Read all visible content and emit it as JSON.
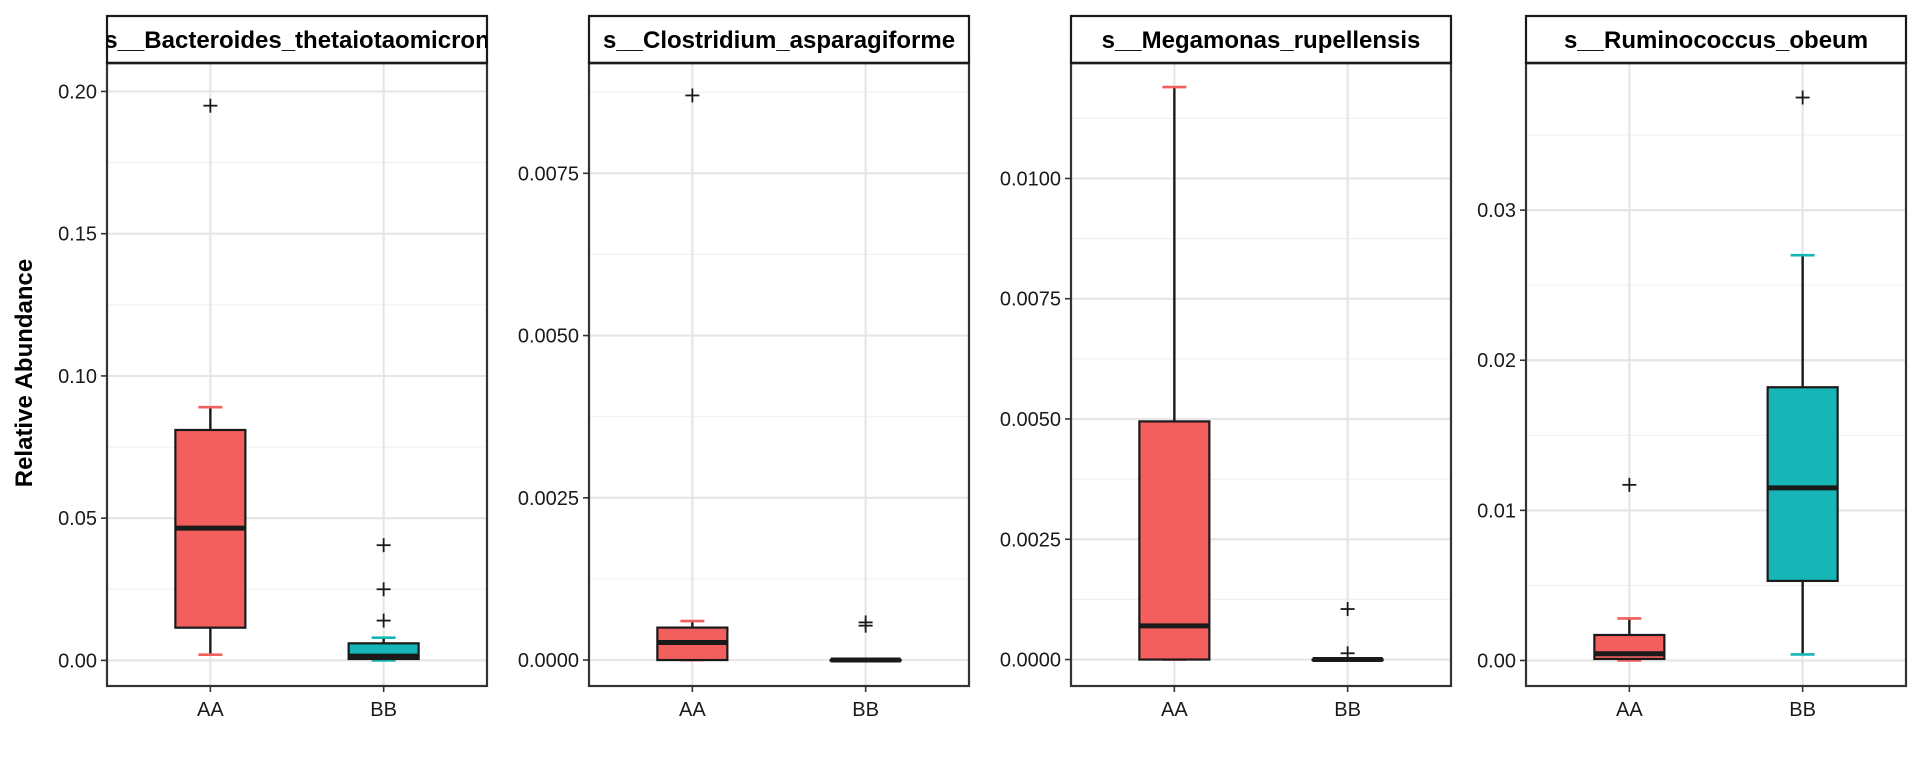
{
  "ylabel": "Relative Abundance",
  "groups": [
    "AA",
    "BB"
  ],
  "colors": {
    "AA": "#F25F5C",
    "BB": "#17B6B6"
  },
  "chart_data": [
    {
      "type": "box",
      "title": "s__Bacteroides_thetaiotaomicron",
      "xlabel": "",
      "ylabel": "Relative Abundance",
      "ylim": [
        -0.009,
        0.21
      ],
      "yticks": [
        0.0,
        0.05,
        0.1,
        0.15,
        0.2
      ],
      "ytick_labels": [
        "0.00",
        "0.05",
        "0.10",
        "0.15",
        "0.20"
      ],
      "boxes": [
        {
          "group": "AA",
          "whisker_low": 0.002,
          "q1": 0.0115,
          "median": 0.0465,
          "q3": 0.081,
          "whisker_high": 0.089,
          "outliers": [
            0.195
          ]
        },
        {
          "group": "BB",
          "whisker_low": 0.0,
          "q1": 0.0005,
          "median": 0.0015,
          "q3": 0.006,
          "whisker_high": 0.008,
          "outliers": [
            0.014,
            0.025,
            0.0405
          ]
        }
      ]
    },
    {
      "type": "box",
      "title": "s__Clostridium_asparagiforme",
      "xlabel": "",
      "ylabel": "",
      "ylim": [
        -0.0004,
        0.0092
      ],
      "yticks": [
        0.0,
        0.0025,
        0.005,
        0.0075
      ],
      "ytick_labels": [
        "0.0000",
        "0.0025",
        "0.0050",
        "0.0075"
      ],
      "boxes": [
        {
          "group": "AA",
          "whisker_low": 0.0,
          "q1": 0.0,
          "median": 0.00027,
          "q3": 0.0005,
          "whisker_high": 0.0006,
          "outliers": [
            0.0087
          ]
        },
        {
          "group": "BB",
          "whisker_low": 0.0,
          "q1": 0.0,
          "median": 0.0,
          "q3": 0.0,
          "whisker_high": 0.0,
          "outliers": [
            0.00053,
            0.00058
          ]
        }
      ]
    },
    {
      "type": "box",
      "title": "s__Megamonas_rupellensis",
      "xlabel": "",
      "ylabel": "",
      "ylim": [
        -0.00055,
        0.0124
      ],
      "yticks": [
        0.0,
        0.0025,
        0.005,
        0.0075,
        0.01
      ],
      "ytick_labels": [
        "0.0000",
        "0.0025",
        "0.0050",
        "0.0075",
        "0.0100"
      ],
      "boxes": [
        {
          "group": "AA",
          "whisker_low": 0.0,
          "q1": 0.0,
          "median": 0.0007,
          "q3": 0.00495,
          "whisker_high": 0.0119,
          "outliers": []
        },
        {
          "group": "BB",
          "whisker_low": 0.0,
          "q1": 0.0,
          "median": 0.0,
          "q3": 0.0,
          "whisker_high": 0.0,
          "outliers": [
            0.00013,
            0.00105
          ]
        }
      ]
    },
    {
      "type": "box",
      "title": "s__Ruminococcus_obeum",
      "xlabel": "",
      "ylabel": "",
      "ylim": [
        -0.0017,
        0.0398
      ],
      "yticks": [
        0.0,
        0.01,
        0.02,
        0.03
      ],
      "ytick_labels": [
        "0.00",
        "0.01",
        "0.02",
        "0.03"
      ],
      "boxes": [
        {
          "group": "AA",
          "whisker_low": 0.0,
          "q1": 0.0001,
          "median": 0.00045,
          "q3": 0.0017,
          "whisker_high": 0.0028,
          "outliers": [
            0.0117
          ]
        },
        {
          "group": "BB",
          "whisker_low": 0.0004,
          "q1": 0.0053,
          "median": 0.0115,
          "q3": 0.0182,
          "whisker_high": 0.027,
          "outliers": [
            0.0375
          ]
        }
      ]
    }
  ]
}
